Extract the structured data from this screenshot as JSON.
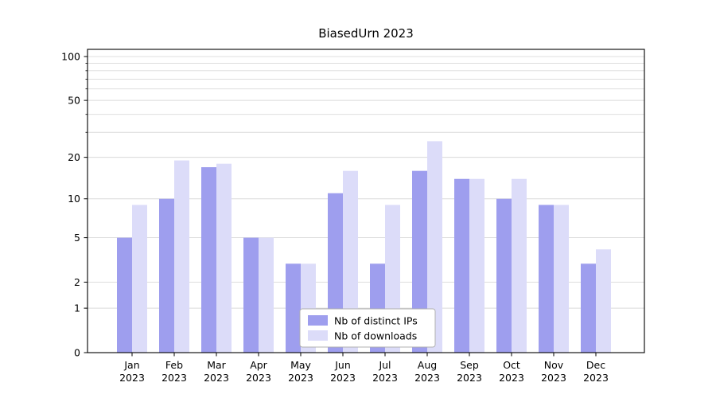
{
  "title": "BiasedUrn 2023",
  "chart_data": {
    "type": "bar",
    "title": "BiasedUrn 2023",
    "categories": [
      "Jan",
      "Feb",
      "Mar",
      "Apr",
      "May",
      "Jun",
      "Jul",
      "Aug",
      "Sep",
      "Oct",
      "Nov",
      "Dec"
    ],
    "category_year": "2023",
    "series": [
      {
        "name": "Nb of distinct IPs",
        "color": "#9e9eee",
        "values": [
          5,
          10,
          17,
          5,
          3,
          11,
          3,
          16,
          14,
          10,
          9,
          3
        ]
      },
      {
        "name": "Nb of downloads",
        "color": "#dcdcf9",
        "values": [
          9,
          19,
          18,
          5,
          3,
          16,
          9,
          26,
          14,
          14,
          9,
          4
        ]
      }
    ],
    "y_scale": "log1p",
    "ylim": [
      0,
      112
    ],
    "y_ticks": [
      0,
      1,
      2,
      5,
      10,
      20,
      50,
      100
    ],
    "gridlines": [
      1,
      2,
      5,
      10,
      20,
      30,
      40,
      50,
      60,
      70,
      80,
      90,
      100
    ],
    "legend": {
      "position": "bottom-center",
      "entries": [
        "Nb of distinct IPs",
        "Nb of downloads"
      ]
    },
    "grid_on": true,
    "grid_color": "#dadada",
    "axis_color": "#000000",
    "background": "#ffffff",
    "xlabel": "",
    "ylabel": ""
  }
}
